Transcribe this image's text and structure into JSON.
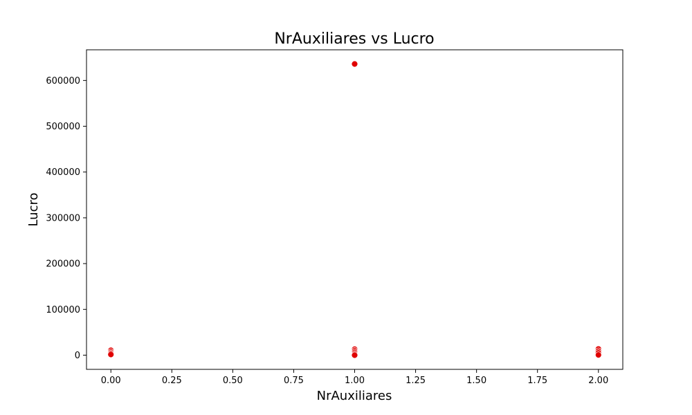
{
  "chart_data": {
    "type": "scatter",
    "title": "NrAuxiliares vs Lucro",
    "xlabel": "NrAuxiliares",
    "ylabel": "Lucro",
    "xlim": [
      -0.1,
      2.1
    ],
    "ylim": [
      -31000,
      667000
    ],
    "xticks": [
      0.0,
      0.25,
      0.5,
      0.75,
      1.0,
      1.25,
      1.5,
      1.75,
      2.0
    ],
    "xtick_labels": [
      "0.00",
      "0.25",
      "0.50",
      "0.75",
      "1.00",
      "1.25",
      "1.50",
      "1.75",
      "2.00"
    ],
    "yticks": [
      0,
      100000,
      200000,
      300000,
      400000,
      500000,
      600000
    ],
    "ytick_labels": [
      "0",
      "100000",
      "200000",
      "300000",
      "400000",
      "500000",
      "600000"
    ],
    "grid": false,
    "marker_color": "#e00000",
    "points": [
      {
        "x": 0,
        "y": 10500
      },
      {
        "x": 0,
        "y": 7000
      },
      {
        "x": 0,
        "y": 4000
      },
      {
        "x": 0,
        "y": 1500
      },
      {
        "x": 1,
        "y": 636000
      },
      {
        "x": 1,
        "y": 13000
      },
      {
        "x": 1,
        "y": 9500
      },
      {
        "x": 1,
        "y": 6000
      },
      {
        "x": 1,
        "y": 2500
      },
      {
        "x": 1,
        "y": 0
      },
      {
        "x": 2,
        "y": 13500
      },
      {
        "x": 2,
        "y": 9000
      },
      {
        "x": 2,
        "y": 5000
      },
      {
        "x": 2,
        "y": 500
      }
    ]
  }
}
